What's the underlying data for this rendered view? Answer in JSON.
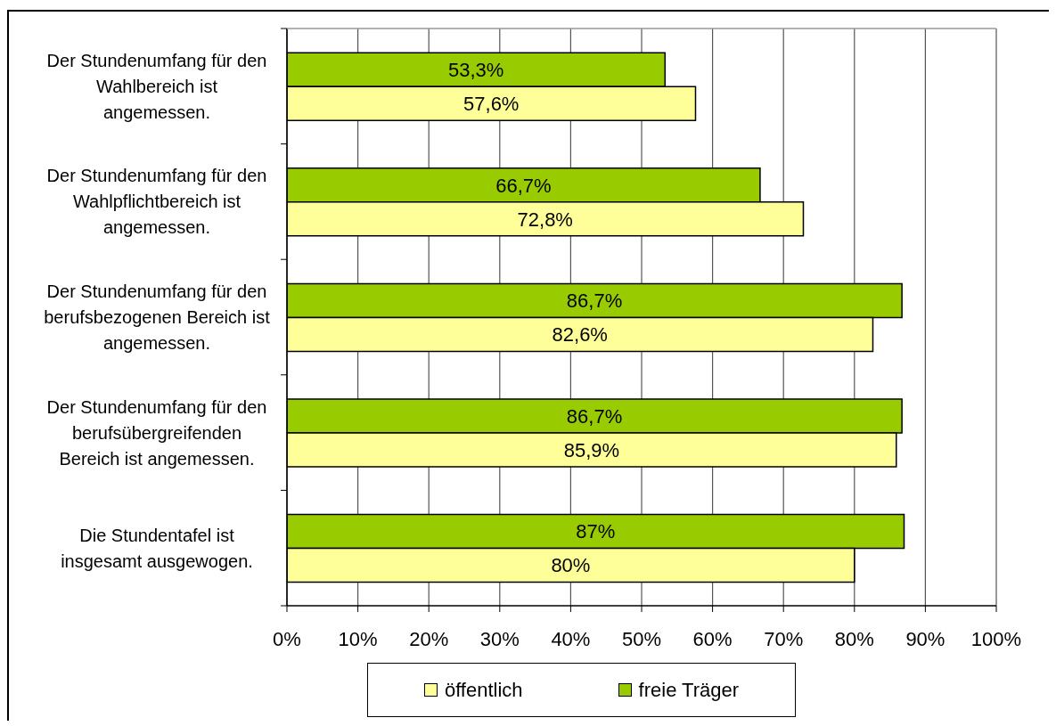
{
  "chart_data": {
    "type": "bar",
    "orientation": "horizontal",
    "categories": [
      "Der Stundenumfang für den Wahlbereich ist angemessen.",
      "Der Stundenumfang für den Wahlpflichtbereich ist angemessen.",
      "Der Stundenumfang für den berufsbezogenen Bereich ist angemessen.",
      "Der Stundenumfang für den berufsübergreifenden Bereich ist angemessen.",
      "Die Stundentafel ist insgesamt ausgewogen."
    ],
    "series": [
      {
        "name": "öffentlich",
        "color": "#ffff99",
        "values": [
          57.6,
          72.8,
          82.6,
          85.9,
          80
        ],
        "value_labels": [
          "57,6%",
          "72,8%",
          "82,6%",
          "85,9%",
          "80%"
        ]
      },
      {
        "name": "freie Träger",
        "color": "#99cc00",
        "values": [
          53.3,
          66.7,
          86.7,
          86.7,
          87
        ],
        "value_labels": [
          "53,3%",
          "66,7%",
          "86,7%",
          "86,7%",
          "87%"
        ]
      }
    ],
    "xlim": [
      0,
      100
    ],
    "xticks": [
      {
        "value": 0,
        "label": "0%"
      },
      {
        "value": 10,
        "label": "10%"
      },
      {
        "value": 20,
        "label": "20%"
      },
      {
        "value": 30,
        "label": "30%"
      },
      {
        "value": 40,
        "label": "40%"
      },
      {
        "value": 50,
        "label": "50%"
      },
      {
        "value": 60,
        "label": "60%"
      },
      {
        "value": 70,
        "label": "70%"
      },
      {
        "value": 80,
        "label": "80%"
      },
      {
        "value": 90,
        "label": "90%"
      },
      {
        "value": 100,
        "label": "100%"
      }
    ],
    "grid": "x",
    "legend": "bottom"
  }
}
